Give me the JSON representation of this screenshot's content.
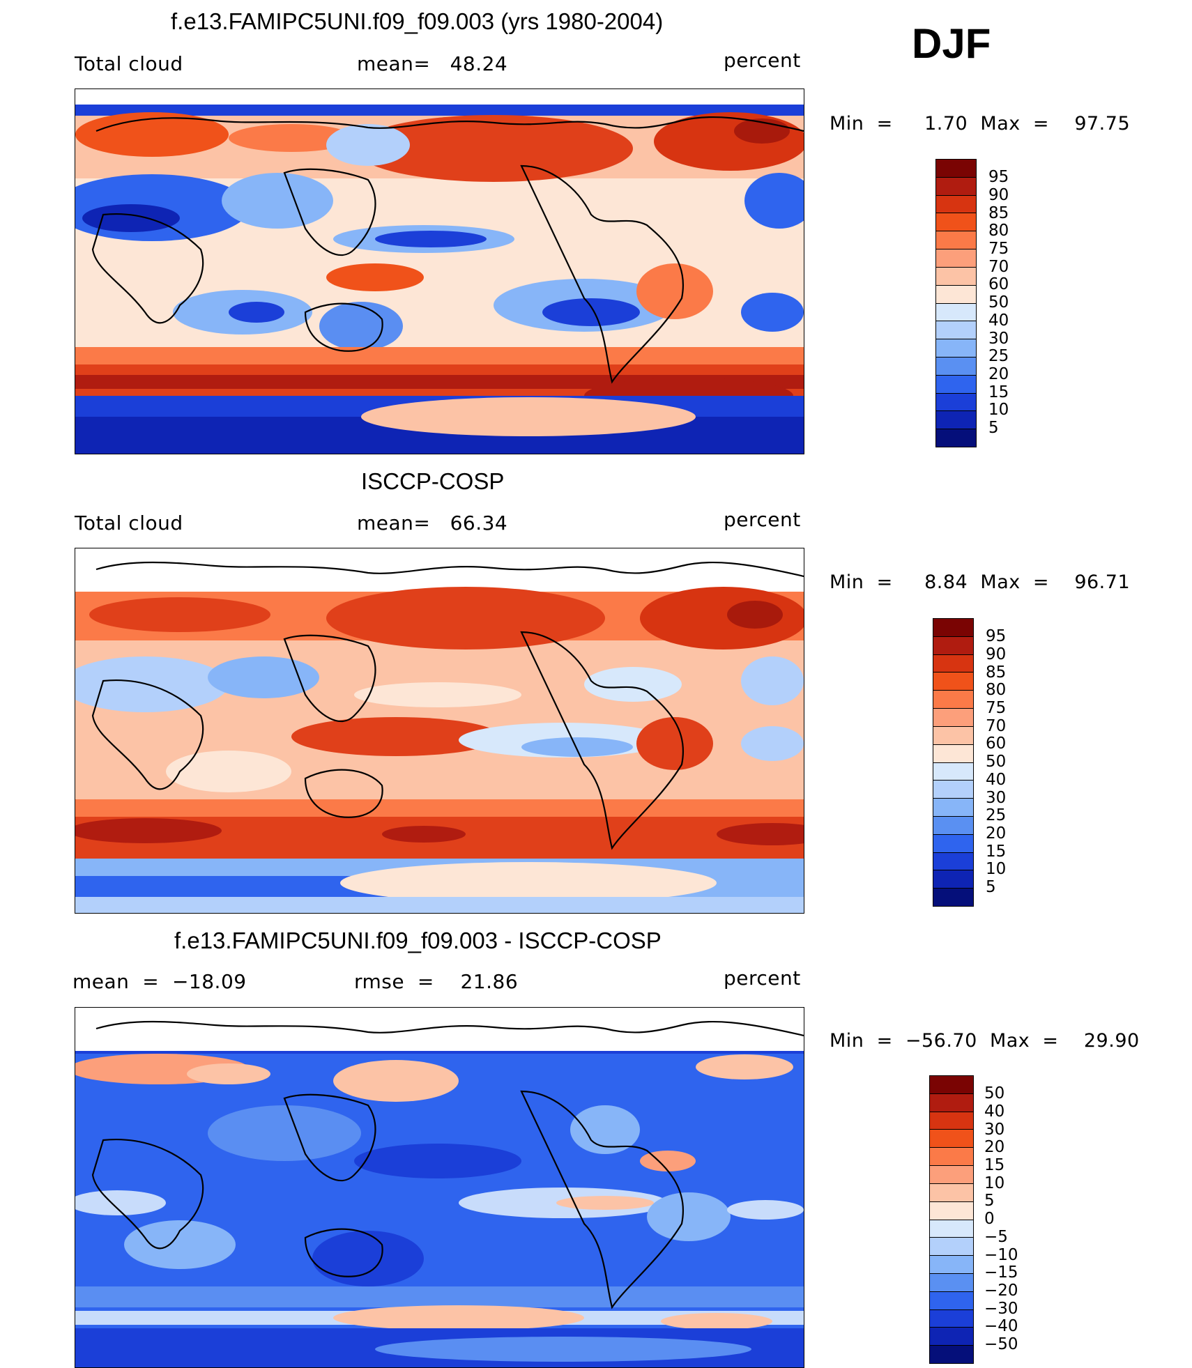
{
  "season": "DJF",
  "panels": [
    {
      "id": "model",
      "title": "f.e13.FAMIPC5UNI.f09_f09.003 (yrs 1980-2004)",
      "left_label": "Total cloud",
      "center_label": "mean=   48.24",
      "right_label": "percent",
      "minmax": "Min  =     1.70  Max  =    97.75",
      "colorbar_labels": [
        "95",
        "90",
        "85",
        "80",
        "75",
        "70",
        "60",
        "50",
        "40",
        "30",
        "25",
        "20",
        "15",
        "10",
        "5"
      ],
      "colorbar_colors": [
        "#7a0403",
        "#b01c10",
        "#d73411",
        "#f0521a",
        "#fb7a48",
        "#fc9f7b",
        "#fcc3a6",
        "#fde6d6",
        "#d7e8fb",
        "#b3d0fb",
        "#87b5f8",
        "#5a90f2",
        "#2f64ee",
        "#1b3fd8",
        "#0e24b4",
        "#050f7a"
      ]
    },
    {
      "id": "obs",
      "title": "ISCCP-COSP",
      "left_label": "Total cloud",
      "center_label": "mean=   66.34",
      "right_label": "percent",
      "minmax": "Min  =     8.84  Max  =    96.71",
      "colorbar_labels": [
        "95",
        "90",
        "85",
        "80",
        "75",
        "70",
        "60",
        "50",
        "40",
        "30",
        "25",
        "20",
        "15",
        "10",
        "5"
      ],
      "colorbar_colors": [
        "#7a0403",
        "#b01c10",
        "#d73411",
        "#f0521a",
        "#fb7a48",
        "#fc9f7b",
        "#fcc3a6",
        "#fde6d6",
        "#d7e8fb",
        "#b3d0fb",
        "#87b5f8",
        "#5a90f2",
        "#2f64ee",
        "#1b3fd8",
        "#0e24b4",
        "#050f7a"
      ]
    },
    {
      "id": "diff",
      "title": "f.e13.FAMIPC5UNI.f09_f09.003 - ISCCP-COSP",
      "left_label": "mean  =  −18.09",
      "center_label": "rmse  =    21.86",
      "right_label": "percent",
      "minmax": "Min  =  −56.70  Max  =    29.90",
      "colorbar_labels": [
        "50",
        "40",
        "30",
        "20",
        "15",
        "10",
        "5",
        "0",
        "−5",
        "−10",
        "−15",
        "−20",
        "−30",
        "−40",
        "−50"
      ],
      "colorbar_colors": [
        "#7a0403",
        "#b01c10",
        "#d73411",
        "#f0521a",
        "#fb7a48",
        "#fc9f7b",
        "#fcc3a6",
        "#fde6d6",
        "#d7e8fb",
        "#b3d0fb",
        "#87b5f8",
        "#5a90f2",
        "#2f64ee",
        "#1b3fd8",
        "#0e24b4",
        "#050f7a"
      ]
    }
  ],
  "field_colors": {
    "deep_red": "#a81a0c",
    "red": "#e0401a",
    "light_red": "#f7a284",
    "cream": "#fbe2d2",
    "light_blue": "#c8dcfb",
    "blue": "#5a8ef2",
    "deep_blue": "#1b3fd8"
  }
}
